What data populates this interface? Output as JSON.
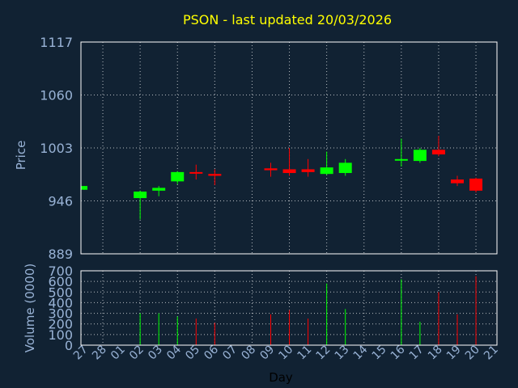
{
  "chart_data": [
    {
      "type": "candlestick",
      "title": "PSON - last updated 20/03/2026",
      "ylabel": "Price",
      "ylim": [
        889,
        1117
      ],
      "yticks": [
        "1117",
        "1060",
        "1003",
        "946",
        "889"
      ],
      "grid": true,
      "colors": {
        "up": "#00ff00",
        "down": "#ff0000"
      },
      "candles": [
        {
          "day": "27",
          "open": 958,
          "close": 962,
          "high": 962,
          "low": 958
        },
        {
          "day": "02",
          "open": 949,
          "close": 956,
          "high": 957,
          "low": 926
        },
        {
          "day": "03",
          "open": 957,
          "close": 960,
          "high": 962,
          "low": 951
        },
        {
          "day": "04",
          "open": 967,
          "close": 977,
          "high": 978,
          "low": 964
        },
        {
          "day": "05",
          "open": 977,
          "close": 976,
          "high": 985,
          "low": 969
        },
        {
          "day": "06",
          "open": 975,
          "close": 973,
          "high": 980,
          "low": 963
        },
        {
          "day": "09",
          "open": 981,
          "close": 979,
          "high": 987,
          "low": 972
        },
        {
          "day": "10",
          "open": 980,
          "close": 976,
          "high": 1003,
          "low": 973
        },
        {
          "day": "11",
          "open": 980,
          "close": 977,
          "high": 991,
          "low": 972
        },
        {
          "day": "12",
          "open": 975,
          "close": 982,
          "high": 999,
          "low": 974
        },
        {
          "day": "13",
          "open": 976,
          "close": 987,
          "high": 991,
          "low": 973
        },
        {
          "day": "16",
          "open": 990,
          "close": 991,
          "high": 1013,
          "low": 983
        },
        {
          "day": "17",
          "open": 989,
          "close": 1001,
          "high": 1003,
          "low": 987
        },
        {
          "day": "18",
          "open": 1001,
          "close": 996,
          "high": 1016,
          "low": 994
        },
        {
          "day": "19",
          "open": 969,
          "close": 965,
          "high": 973,
          "low": 962
        },
        {
          "day": "20",
          "open": 970,
          "close": 957,
          "high": 971,
          "low": 955
        }
      ]
    },
    {
      "type": "bar",
      "ylabel": "Volume (0000)",
      "xlabel": "Day",
      "ylim": [
        0,
        700
      ],
      "yticks": [
        "700",
        "600",
        "500",
        "400",
        "300",
        "200",
        "100",
        "0"
      ],
      "x_tick_labels": [
        "27",
        "28",
        "01",
        "02",
        "03",
        "04",
        "05",
        "06",
        "07",
        "08",
        "09",
        "10",
        "11",
        "12",
        "13",
        "14",
        "15",
        "16",
        "17",
        "18",
        "19",
        "20",
        "21"
      ],
      "bars": [
        {
          "day": "02",
          "value": 300,
          "dir": "up"
        },
        {
          "day": "03",
          "value": 300,
          "dir": "up"
        },
        {
          "day": "04",
          "value": 270,
          "dir": "up"
        },
        {
          "day": "05",
          "value": 250,
          "dir": "down"
        },
        {
          "day": "06",
          "value": 210,
          "dir": "down"
        },
        {
          "day": "09",
          "value": 290,
          "dir": "down"
        },
        {
          "day": "10",
          "value": 330,
          "dir": "down"
        },
        {
          "day": "11",
          "value": 250,
          "dir": "down"
        },
        {
          "day": "12",
          "value": 580,
          "dir": "up"
        },
        {
          "day": "13",
          "value": 340,
          "dir": "up"
        },
        {
          "day": "16",
          "value": 620,
          "dir": "up"
        },
        {
          "day": "17",
          "value": 220,
          "dir": "up"
        },
        {
          "day": "18",
          "value": 500,
          "dir": "down"
        },
        {
          "day": "19",
          "value": 290,
          "dir": "down"
        },
        {
          "day": "20",
          "value": 650,
          "dir": "down"
        }
      ]
    }
  ]
}
